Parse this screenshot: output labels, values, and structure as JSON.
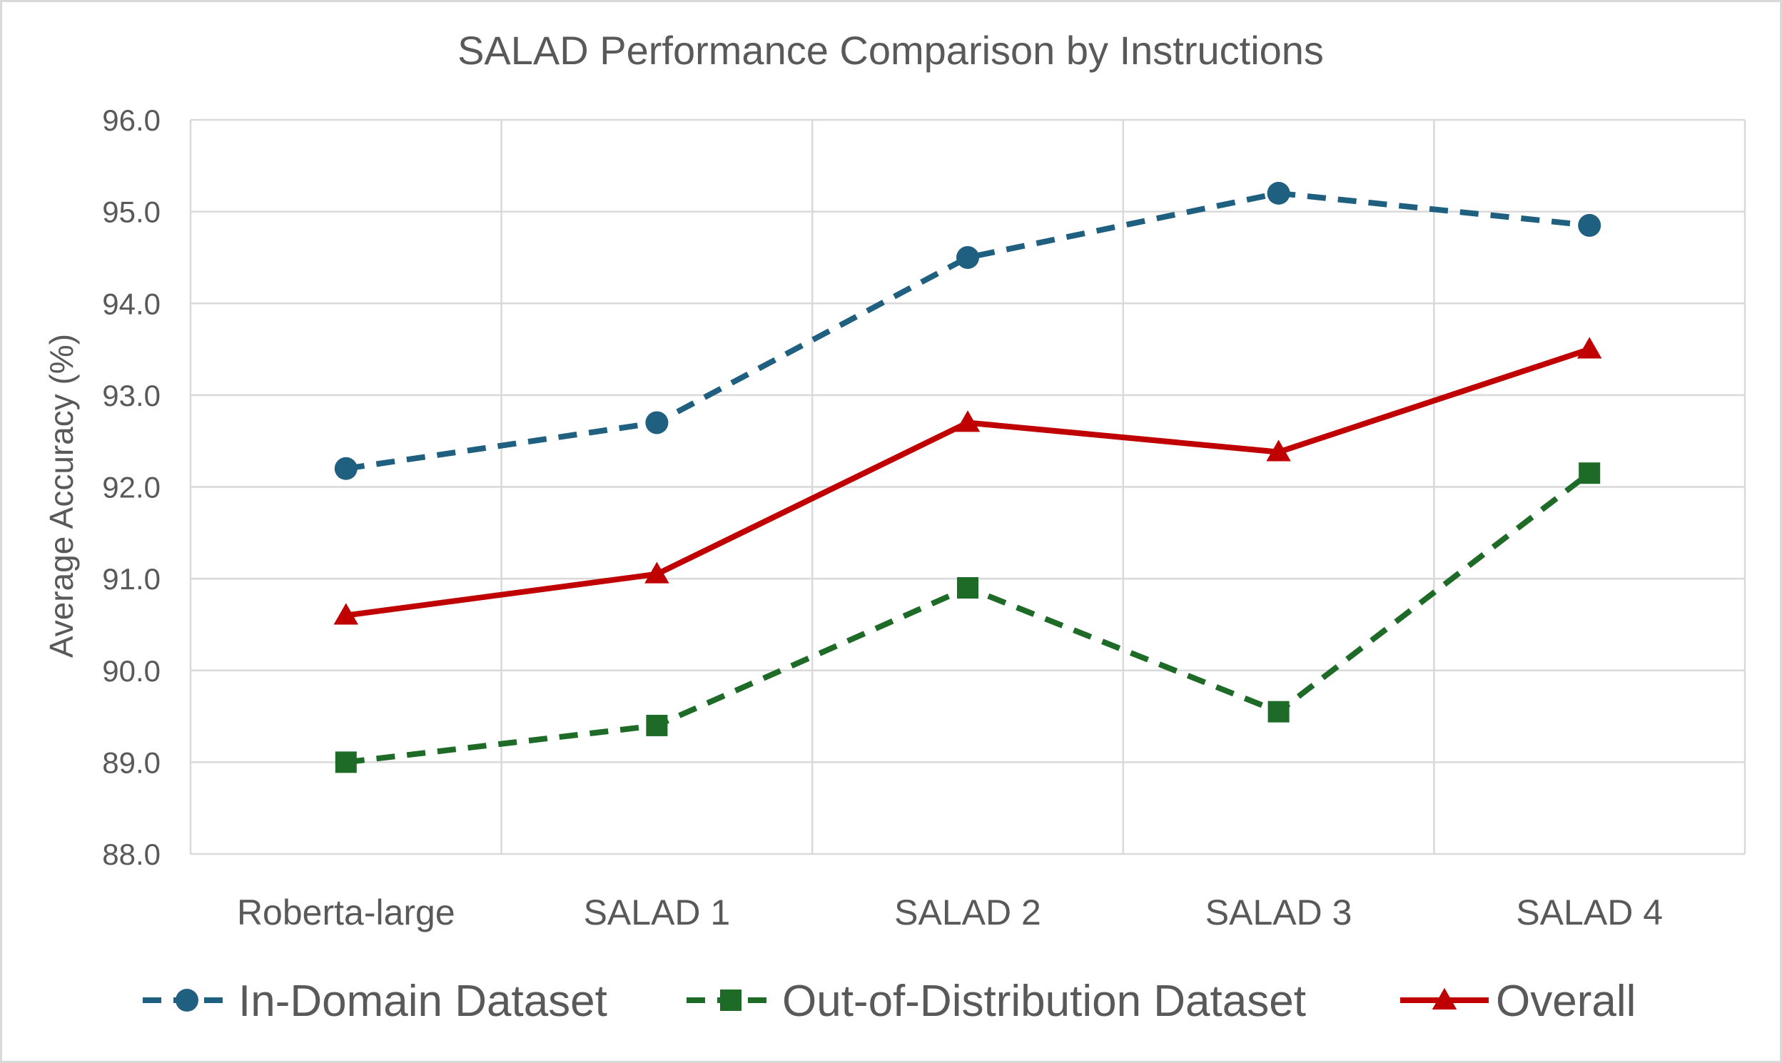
{
  "chart_data": {
    "type": "line",
    "title": "SALAD Performance Comparison by Instructions",
    "xlabel": "",
    "ylabel": "Average Accuracy (%)",
    "categories": [
      "Roberta-large",
      "SALAD 1",
      "SALAD 2",
      "SALAD 3",
      "SALAD 4"
    ],
    "ylim": [
      88.0,
      96.0
    ],
    "yticks": [
      "88.0",
      "89.0",
      "90.0",
      "91.0",
      "92.0",
      "93.0",
      "94.0",
      "95.0",
      "96.0"
    ],
    "grid": true,
    "legend_position": "bottom",
    "series": [
      {
        "name": "In-Domain Dataset",
        "values": [
          92.2,
          92.7,
          94.5,
          95.2,
          94.85
        ],
        "color": "#1f5f7f",
        "marker": "circle",
        "line": "dashed"
      },
      {
        "name": "Out-of-Distribution Dataset",
        "values": [
          89.0,
          89.4,
          90.9,
          89.55,
          92.15
        ],
        "color": "#1e6b28",
        "marker": "square",
        "line": "dashed"
      },
      {
        "name": "Overall",
        "values": [
          90.6,
          91.05,
          92.7,
          92.38,
          93.5
        ],
        "color": "#c00000",
        "marker": "triangle",
        "line": "solid"
      }
    ]
  }
}
